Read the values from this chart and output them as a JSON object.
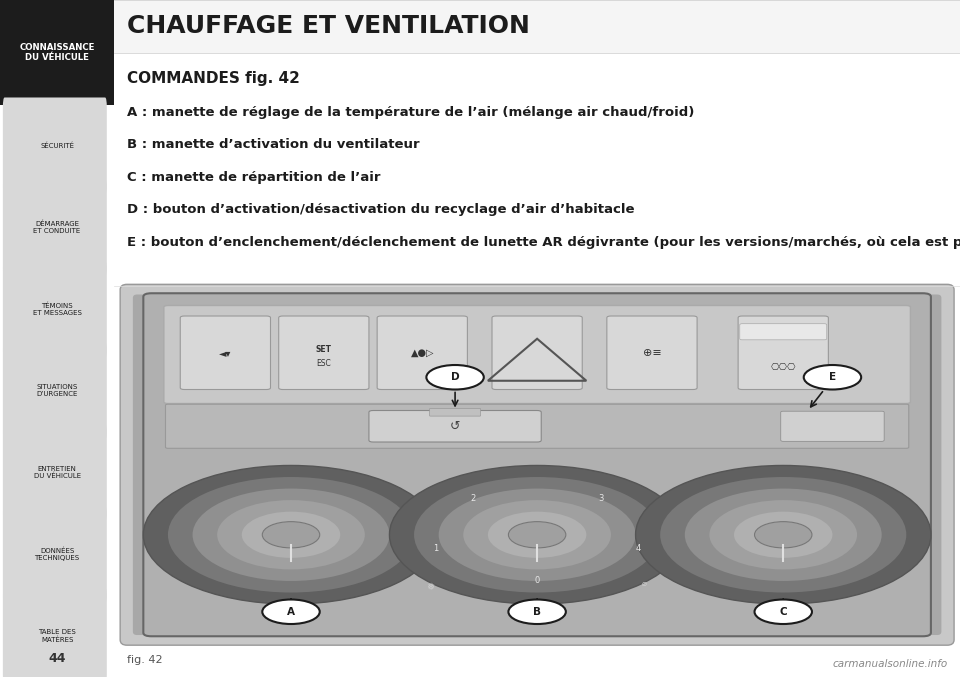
{
  "title": "CHAUFFAGE ET VENTILATION",
  "subtitle": "COMMANDES fig. 42",
  "lines": [
    "A : manette de réglage de la température de l’air (mélange air chaud/froid)",
    "B : manette d’activation du ventilateur",
    "C : manette de répartition de l’air",
    "D : bouton d’activation/désactivation du recyclage d’air d’habitacle",
    "E : bouton d’enclenchement/déclenchement de lunette AR dégivrante (pour les versions/marchés, où cela est prévu)."
  ],
  "sidebar_items": [
    "CONNAISSANCE\nDU VÉHICULE",
    "SÉCURITÉ",
    "DÉMARRAGE\nET CONDUITE",
    "TÉMOINS\nET MESSAGES",
    "SITUATIONS\nD’URGENCE",
    "ENTRETIEN\nDU VÉHICULE",
    "DONNÉES\nTECHNIQUES",
    "TABLE DES\nMATÈRES"
  ],
  "page_number": "44",
  "fig_label": "fig. 42",
  "bg_color": "#ffffff",
  "sidebar_header_bg": "#1c1c1c",
  "sidebar_header_text": "#ffffff",
  "tab_bg": "#e0e0e0",
  "tab_text_color": "#1c1c1c",
  "main_bg": "#ffffff",
  "text_color": "#000000",
  "title_bg": "#f0f0f0",
  "watermark": "carmanualsonline.info",
  "title_font_size": 18,
  "subtitle_font_size": 11,
  "line_font_size": 9.5
}
